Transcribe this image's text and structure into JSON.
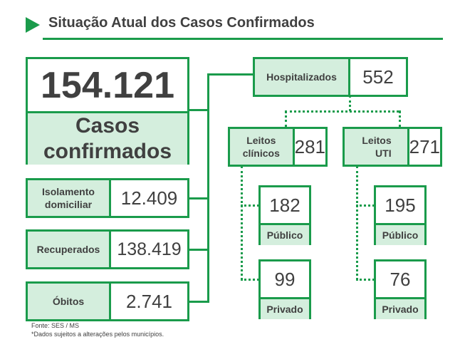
{
  "header": {
    "title": "Situação Atual dos Casos Confirmados"
  },
  "main": {
    "total_value": "154.121",
    "total_label": "Casos confirmados",
    "isolamento": {
      "label": "Isolamento domiciliar",
      "value": "12.409"
    },
    "recuperados": {
      "label": "Recuperados",
      "value": "138.419"
    },
    "obitos": {
      "label": "Óbitos",
      "value": "2.741"
    }
  },
  "hospital": {
    "label": "Hospitalizados",
    "value": "552",
    "clinicos": {
      "label": "Leitos clínicos",
      "value": "281",
      "publico": {
        "value": "182",
        "label": "Público"
      },
      "privado": {
        "value": "99",
        "label": "Privado"
      }
    },
    "uti": {
      "label": "Leitos UTI",
      "value": "271",
      "publico": {
        "value": "195",
        "label": "Público"
      },
      "privado": {
        "value": "76",
        "label": "Privado"
      }
    }
  },
  "footer": {
    "source": "Fonte: SES / MS",
    "note": "*Dados sujeitos a alterações pelos municípios."
  },
  "colors": {
    "accent": "#1a9b4b",
    "fill": "#d4eedd",
    "text": "#404040"
  }
}
